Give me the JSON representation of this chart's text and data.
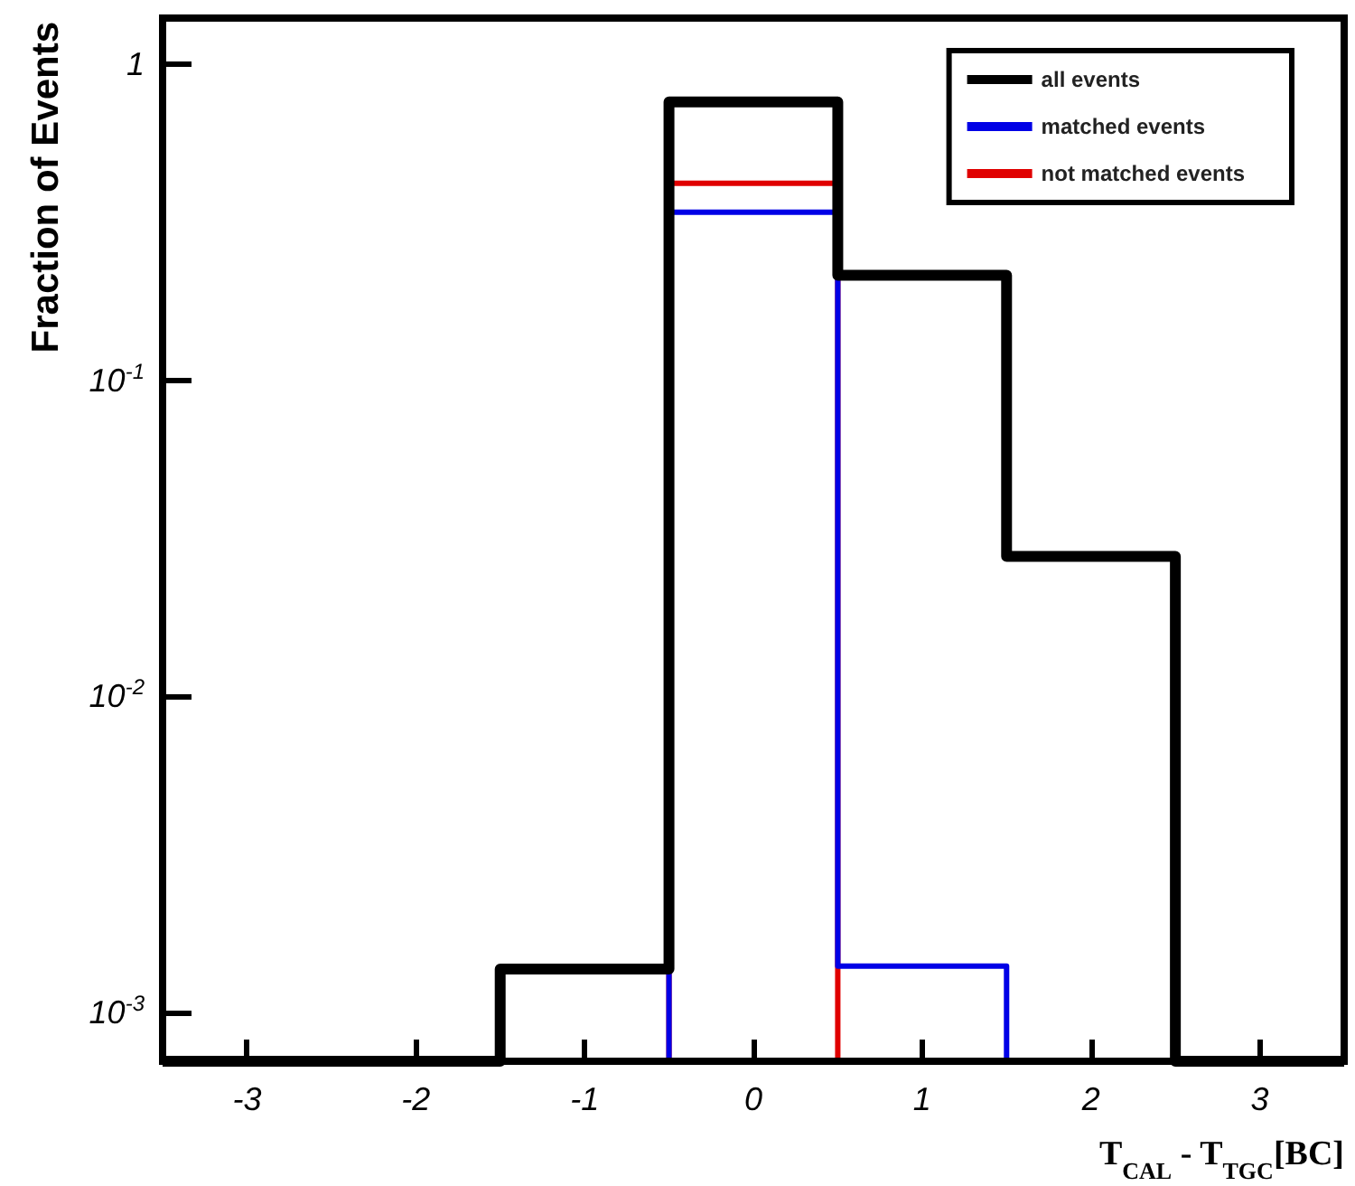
{
  "chart_data": {
    "type": "histogram",
    "xlabel": "T$_{CAL}$ - T$_{TGC}$[BC]",
    "ylabel": "Fraction of Events",
    "bins": [
      -3.5,
      -2.5,
      -1.5,
      -0.5,
      0.5,
      1.5,
      2.5,
      3.5
    ],
    "series": [
      {
        "name": "all events",
        "color": "#000000",
        "values": [
          null,
          null,
          0.00137,
          0.76,
          0.215,
          0.0277,
          null
        ]
      },
      {
        "name": "matched events",
        "color": "#0000e6",
        "values": [
          null,
          null,
          null,
          0.34,
          0.0014,
          null,
          null
        ]
      },
      {
        "name": "not matched events",
        "color": "#e00000",
        "values": [
          null,
          null,
          null,
          0.42,
          null,
          null,
          null
        ]
      }
    ],
    "xlim": [
      -3.5,
      3.5
    ],
    "xticks": [
      -3,
      -2,
      -1,
      0,
      1,
      2,
      3
    ],
    "ylim": [
      0.0007,
      1.4
    ],
    "yticks": [
      {
        "value": 0.001,
        "label": "10$^{-3}$"
      },
      {
        "value": 0.01,
        "label": "10$^{-2}$"
      },
      {
        "value": 0.1,
        "label": "10$^{-1}$"
      },
      1
    ],
    "log": true,
    "grid": false,
    "legend": "top right"
  }
}
